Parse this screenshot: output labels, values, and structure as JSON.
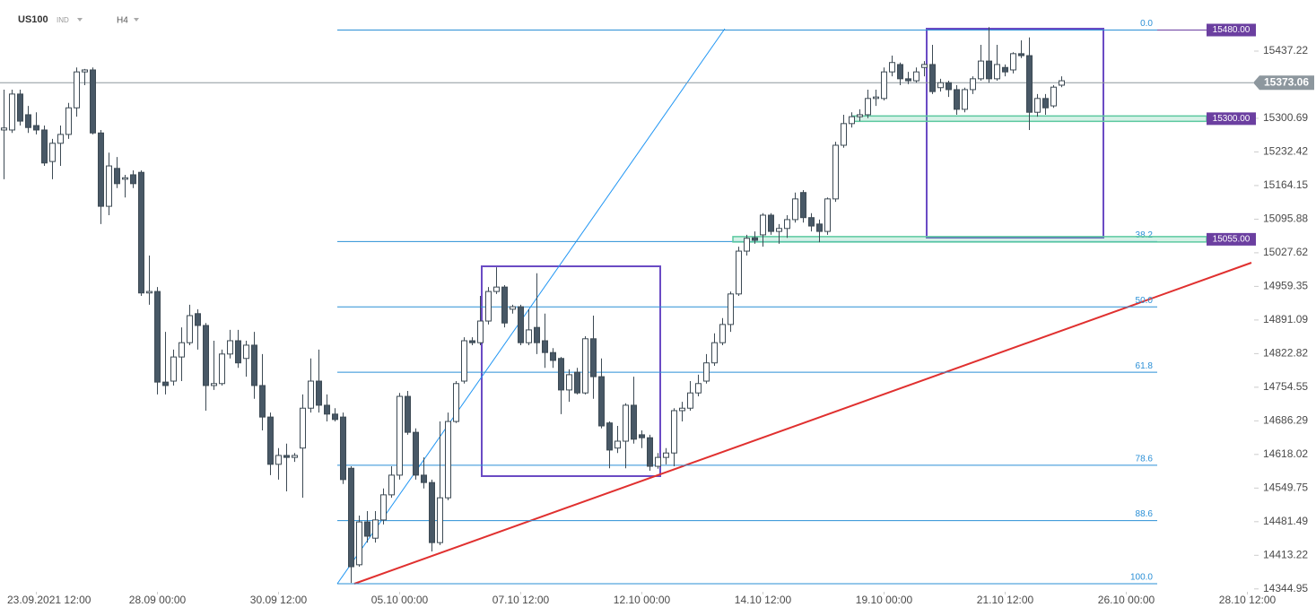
{
  "chart_data": {
    "type": "candlestick",
    "title": "US100",
    "instrument_type": "IND",
    "timeframe": "H4",
    "up_color": "#ffffff",
    "down_color": "#485866",
    "open": [
      15277,
      15277,
      15350,
      15308,
      15286,
      15277,
      15213,
      15250,
      15268,
      15322,
      15395,
      15399,
      15271,
      15122,
      15199,
      15177,
      15186,
      15191,
      14946,
      14949,
      14765,
      14767,
      14816,
      14845,
      14904,
      14880,
      14758,
      14762,
      14822,
      14849,
      14813,
      14840,
      14758,
      14694,
      14598,
      14616,
      14612,
      14631,
      14712,
      14767,
      14718,
      14700,
      14694,
      14590,
      14394,
      14481,
      14448,
      14485,
      14536,
      14576,
      14736,
      14663,
      14576,
      14561,
      14439,
      14530,
      14685,
      14767,
      14849,
      14845,
      14889,
      14949,
      14958,
      14913,
      14918,
      14845,
      14876,
      14849,
      14825,
      14813,
      14749,
      14785,
      14743,
      14853,
      14776,
      14682,
      14631,
      14645,
      14718,
      14658,
      14652,
      14594,
      14612,
      14621,
      14707,
      14712,
      14743,
      14767,
      14804,
      14845,
      14882,
      14944,
      15031,
      15058,
      15064,
      15104,
      15071,
      15077,
      15095,
      15150,
      15099,
      15086,
      15071,
      15137,
      15246,
      15290,
      15304,
      15308,
      15341,
      15341,
      15395,
      15410,
      15381,
      15377,
      15404,
      15410,
      15363,
      15373,
      15359,
      15319,
      15359,
      15381,
      15417,
      15381,
      15404,
      15399,
      15432,
      15428,
      15313,
      15341,
      15326,
      15368
    ],
    "high": [
      15359,
      15359,
      15359,
      15326,
      15313,
      15286,
      15259,
      15286,
      15332,
      15404,
      15401,
      15404,
      15277,
      15231,
      15222,
      15186,
      15195,
      15195,
      15022,
      14958,
      14867,
      14831,
      14876,
      14922,
      14913,
      14885,
      14849,
      14831,
      14871,
      14871,
      14849,
      14867,
      14822,
      14703,
      14631,
      14640,
      14621,
      14740,
      14813,
      14831,
      14740,
      14712,
      14703,
      14594,
      14494,
      14503,
      14503,
      14549,
      14594,
      14743,
      14747,
      14671,
      14612,
      14567,
      14685,
      14703,
      14767,
      14856,
      14856,
      14940,
      14958,
      14998,
      14962,
      14922,
      14922,
      14913,
      14986,
      14904,
      14834,
      14816,
      14791,
      14794,
      14858,
      14900,
      14813,
      14685,
      14676,
      14722,
      14776,
      14667,
      14658,
      14621,
      14631,
      14712,
      14725,
      14767,
      14780,
      14822,
      14864,
      14895,
      14949,
      15040,
      15064,
      15071,
      15108,
      15108,
      15086,
      15104,
      15150,
      15155,
      15108,
      15095,
      15140,
      15253,
      15308,
      15313,
      15319,
      15359,
      15359,
      15404,
      15428,
      15414,
      15395,
      15404,
      15417,
      15450,
      15381,
      15377,
      15368,
      15363,
      15386,
      15450,
      15486,
      15450,
      15410,
      15435,
      15459,
      15465,
      15350,
      15350,
      15368,
      15386
    ],
    "low": [
      15177,
      15271,
      15286,
      15271,
      15268,
      15204,
      15177,
      15204,
      15259,
      15304,
      15368,
      15268,
      15086,
      15104,
      15159,
      15140,
      15159,
      14940,
      14922,
      14740,
      14740,
      14758,
      14767,
      14840,
      14831,
      14707,
      14749,
      14758,
      14813,
      14794,
      14776,
      14731,
      14667,
      14576,
      14567,
      14543,
      14603,
      14530,
      14703,
      14703,
      14685,
      14685,
      14558,
      14357,
      14390,
      14439,
      14439,
      14476,
      14530,
      14567,
      14658,
      14567,
      14549,
      14421,
      14434,
      14525,
      14682,
      14762,
      14840,
      14840,
      14882,
      14944,
      14876,
      14904,
      14840,
      14840,
      14822,
      14794,
      14794,
      14700,
      14725,
      14740,
      14740,
      14731,
      14671,
      14590,
      14621,
      14590,
      14640,
      14631,
      14585,
      14589,
      14598,
      14594,
      14685,
      14707,
      14736,
      14762,
      14798,
      14840,
      14867,
      14940,
      15022,
      15046,
      15040,
      15064,
      15046,
      15058,
      15089,
      15089,
      15071,
      15049,
      15064,
      15131,
      15241,
      15282,
      15295,
      15301,
      15326,
      15337,
      15386,
      15368,
      15370,
      15373,
      15386,
      15350,
      15355,
      15344,
      15308,
      15313,
      15350,
      15377,
      15373,
      15377,
      15386,
      15392,
      15423,
      15277,
      15304,
      15308,
      15322,
      15364
    ],
    "close": [
      15281,
      15350,
      15295,
      15282,
      15277,
      15210,
      15250,
      15268,
      15322,
      15395,
      15399,
      15271,
      15122,
      15204,
      15168,
      15180,
      15168,
      14946,
      14949,
      14765,
      14758,
      14816,
      14845,
      14900,
      14880,
      14758,
      14762,
      14822,
      14849,
      14804,
      14840,
      14758,
      14694,
      14598,
      14616,
      14612,
      14616,
      14712,
      14767,
      14718,
      14700,
      14689,
      14567,
      14390,
      14481,
      14452,
      14485,
      14536,
      14576,
      14736,
      14663,
      14576,
      14561,
      14439,
      14530,
      14685,
      14762,
      14849,
      14845,
      14889,
      14949,
      14958,
      14885,
      14918,
      14845,
      14871,
      14845,
      14825,
      14809,
      14749,
      14780,
      14743,
      14853,
      14776,
      14676,
      14627,
      14645,
      14718,
      14649,
      14652,
      14594,
      14612,
      14621,
      14707,
      14712,
      14743,
      14762,
      14804,
      14845,
      14882,
      14944,
      15031,
      15057,
      15053,
      15104,
      15071,
      15077,
      15095,
      15137,
      15099,
      15082,
      15071,
      15137,
      15246,
      15290,
      15304,
      15308,
      15341,
      15344,
      15395,
      15414,
      15381,
      15377,
      15395,
      15410,
      15355,
      15373,
      15359,
      15319,
      15359,
      15381,
      15417,
      15381,
      15410,
      15395,
      15432,
      15428,
      15313,
      15341,
      15322,
      15364,
      15377
    ],
    "xlim": [
      -0.5,
      154.5
    ],
    "xticks": [
      {
        "value": 4,
        "label": "23.09.2021 12:00"
      },
      {
        "value": 19,
        "label": "28.09 00:00"
      },
      {
        "value": 34,
        "label": "30.09 12:00"
      },
      {
        "value": 49,
        "label": "05.10 00:00"
      },
      {
        "value": 64,
        "label": "07.10 12:00"
      },
      {
        "value": 79,
        "label": "12.10 00:00"
      },
      {
        "value": 94,
        "label": "14.10 12:00"
      },
      {
        "value": 109,
        "label": "19.10 00:00"
      },
      {
        "value": 124,
        "label": "21.10 12:00"
      },
      {
        "value": 139,
        "label": "26.10 00:00"
      },
      {
        "value": 154,
        "label": "28.10 12:00"
      }
    ],
    "ylim": [
      14339.1,
      15541
    ],
    "yticks": [
      15437.22,
      15300.69,
      15232.42,
      15164.15,
      15095.88,
      15027.62,
      14959.35,
      14891.09,
      14822.82,
      14754.55,
      14686.29,
      14618.02,
      14549.75,
      14481.49,
      14413.22,
      14344.95
    ],
    "current_price": 15373.06,
    "levels": [
      {
        "value": 15480,
        "label": "15480.00"
      },
      {
        "value": 15300,
        "label": "15300.00"
      },
      {
        "value": 15055,
        "label": "15055.00"
      }
    ],
    "fibonacci": {
      "high": 15480,
      "low": 14355.5,
      "levels": [
        {
          "value": 0,
          "label": "0.0"
        },
        38.2,
        {
          "value": 50,
          "label": "50.0"
        },
        61.8,
        78.6,
        88.6,
        {
          "value": 100,
          "label": "100.0"
        }
      ]
    }
  }
}
